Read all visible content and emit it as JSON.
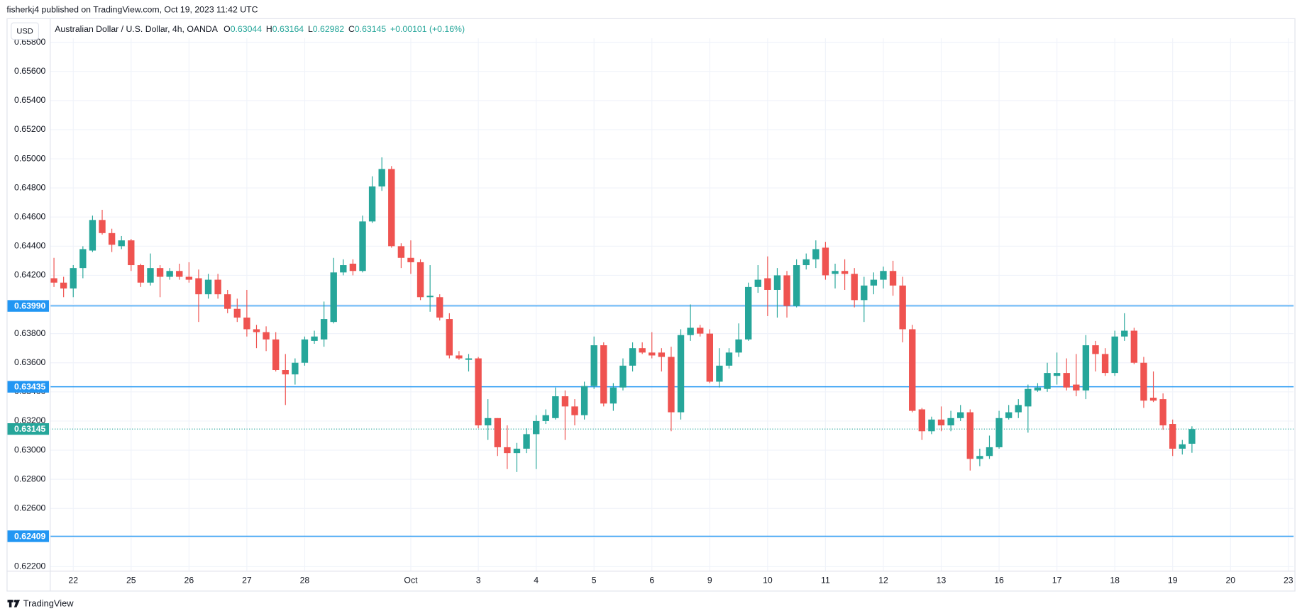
{
  "header": {
    "publisher": "fisherkj4 published on TradingView.com, Oct 19, 2023 11:42 UTC",
    "footer": "TradingView"
  },
  "chart_data": {
    "type": "candlestick",
    "currency": "USD",
    "title": "Australian Dollar / U.S. Dollar, 4h, OANDA",
    "ohlc_legend": [
      {
        "label": "O",
        "value": 0.63044
      },
      {
        "label": "H",
        "value": 0.63164
      },
      {
        "label": "L",
        "value": 0.62982
      },
      {
        "label": "C",
        "value": 0.63145
      }
    ],
    "change": "+0.00101 (+0.16%)",
    "up_color": "#26a69a",
    "down_color": "#ef5350",
    "x": [
      0,
      1,
      2,
      3,
      4,
      5,
      6,
      7,
      8,
      9,
      10,
      11,
      12,
      13,
      14,
      15,
      16,
      17,
      18,
      19,
      20,
      21,
      22,
      23,
      24,
      25,
      26,
      27,
      28,
      29,
      30,
      31,
      32,
      33,
      34,
      35,
      36,
      37,
      38,
      39,
      40,
      41,
      42,
      43,
      44,
      45,
      46,
      47,
      48,
      49,
      50,
      51,
      52,
      53,
      54,
      55,
      56,
      57,
      58,
      59,
      60,
      61,
      62,
      63,
      64,
      65,
      66,
      67,
      68,
      69,
      70,
      71,
      72,
      73,
      74,
      75,
      76,
      77,
      78,
      79,
      80,
      81,
      82,
      83,
      84,
      85,
      86,
      87,
      88,
      89,
      90,
      91,
      92,
      93,
      94,
      95,
      96,
      97,
      98,
      99,
      100,
      101,
      102,
      103,
      104,
      105,
      106,
      107,
      108,
      109,
      110,
      111,
      112,
      113,
      114,
      115,
      116,
      117,
      118
    ],
    "open": [
      0.6418,
      0.6415,
      0.6411,
      0.6425,
      0.6437,
      0.6458,
      0.6449,
      0.644,
      0.6444,
      0.6427,
      0.6415,
      0.6425,
      0.6419,
      0.6423,
      0.6419,
      0.6418,
      0.6407,
      0.6417,
      0.6407,
      0.6397,
      0.6391,
      0.6383,
      0.6381,
      0.6376,
      0.6355,
      0.6352,
      0.636,
      0.6375,
      0.6376,
      0.6388,
      0.6422,
      0.6428,
      0.6423,
      0.6457,
      0.6481,
      0.6493,
      0.644,
      0.6432,
      0.6429,
      0.6405,
      0.6405,
      0.639,
      0.6365,
      0.6362,
      0.6363,
      0.6317,
      0.6322,
      0.6302,
      0.6298,
      0.6301,
      0.6311,
      0.632,
      0.6322,
      0.6337,
      0.633,
      0.6324,
      0.6344,
      0.6372,
      0.6332,
      0.6343,
      0.6358,
      0.637,
      0.6367,
      0.6367,
      0.6364,
      0.6326,
      0.6379,
      0.6384,
      0.638,
      0.6347,
      0.6358,
      0.6367,
      0.6376,
      0.6412,
      0.6418,
      0.641,
      0.642,
      0.6399,
      0.6427,
      0.6431,
      0.6439,
      0.6421,
      0.6423,
      0.6421,
      0.6403,
      0.6413,
      0.6417,
      0.6423,
      0.6413,
      0.6383,
      0.6328,
      0.6313,
      0.6321,
      0.6317,
      0.6322,
      0.6326,
      0.6294,
      0.6296,
      0.6302,
      0.6322,
      0.6326,
      0.633,
      0.6341,
      0.6342,
      0.6351,
      0.6353,
      0.6345,
      0.6341,
      0.6372,
      0.6366,
      0.6353,
      0.6378,
      0.6382,
      0.636,
      0.6336,
      0.6335,
      0.6318,
      0.6301,
      0.63044
    ],
    "high": [
      0.6432,
      0.6419,
      0.6427,
      0.644,
      0.6461,
      0.6465,
      0.6452,
      0.6447,
      0.6445,
      0.6428,
      0.6435,
      0.6427,
      0.6425,
      0.6428,
      0.6429,
      0.6424,
      0.6421,
      0.6421,
      0.641,
      0.6404,
      0.641,
      0.6386,
      0.6385,
      0.6381,
      0.6366,
      0.6363,
      0.6378,
      0.6382,
      0.6402,
      0.6432,
      0.6431,
      0.6431,
      0.6461,
      0.6488,
      0.6501,
      0.6495,
      0.6442,
      0.6444,
      0.6431,
      0.6427,
      0.6407,
      0.6394,
      0.6368,
      0.6366,
      0.6364,
      0.6335,
      0.6322,
      0.6317,
      0.6305,
      0.6315,
      0.6324,
      0.6328,
      0.6343,
      0.6341,
      0.6335,
      0.6347,
      0.6378,
      0.6374,
      0.6346,
      0.6363,
      0.6374,
      0.6374,
      0.6381,
      0.637,
      0.6371,
      0.6383,
      0.64,
      0.6386,
      0.6383,
      0.637,
      0.637,
      0.6387,
      0.6415,
      0.6427,
      0.6433,
      0.6425,
      0.6423,
      0.6431,
      0.6435,
      0.6444,
      0.6443,
      0.6428,
      0.6431,
      0.6425,
      0.6419,
      0.6422,
      0.6426,
      0.643,
      0.6419,
      0.6386,
      0.6329,
      0.6323,
      0.633,
      0.6327,
      0.6331,
      0.6328,
      0.6301,
      0.631,
      0.6327,
      0.6331,
      0.6335,
      0.6345,
      0.6346,
      0.636,
      0.6367,
      0.6363,
      0.6366,
      0.6379,
      0.6375,
      0.637,
      0.6382,
      0.6394,
      0.6384,
      0.6364,
      0.6354,
      0.6339,
      0.6321,
      0.6307,
      0.63164
    ],
    "low": [
      0.6412,
      0.6405,
      0.6405,
      0.6418,
      0.6436,
      0.6448,
      0.6436,
      0.6438,
      0.6423,
      0.6412,
      0.6413,
      0.6405,
      0.6417,
      0.6417,
      0.6415,
      0.6388,
      0.6404,
      0.6404,
      0.6394,
      0.6388,
      0.6378,
      0.637,
      0.6368,
      0.6354,
      0.6331,
      0.6345,
      0.6358,
      0.6373,
      0.6371,
      0.6387,
      0.642,
      0.642,
      0.6422,
      0.6456,
      0.6478,
      0.6439,
      0.6425,
      0.6421,
      0.6403,
      0.6395,
      0.6389,
      0.6363,
      0.6362,
      0.6354,
      0.6315,
      0.6307,
      0.6296,
      0.6287,
      0.6285,
      0.6298,
      0.6287,
      0.6318,
      0.6321,
      0.6307,
      0.6317,
      0.6321,
      0.6342,
      0.633,
      0.6327,
      0.6341,
      0.6354,
      0.6366,
      0.6363,
      0.6354,
      0.6313,
      0.6321,
      0.6375,
      0.6378,
      0.6346,
      0.6343,
      0.6356,
      0.6364,
      0.6375,
      0.6408,
      0.6392,
      0.6391,
      0.6391,
      0.6398,
      0.6424,
      0.6425,
      0.6417,
      0.6411,
      0.641,
      0.6398,
      0.6388,
      0.6407,
      0.6411,
      0.6406,
      0.6374,
      0.6326,
      0.6307,
      0.6311,
      0.6313,
      0.6313,
      0.632,
      0.6286,
      0.6289,
      0.6294,
      0.6301,
      0.6321,
      0.6322,
      0.6312,
      0.634,
      0.634,
      0.6345,
      0.6341,
      0.6337,
      0.6335,
      0.6354,
      0.6351,
      0.6351,
      0.6375,
      0.6359,
      0.6329,
      0.6333,
      0.6314,
      0.6296,
      0.6297,
      0.62982
    ],
    "close": [
      0.6415,
      0.6411,
      0.6425,
      0.6438,
      0.6458,
      0.6449,
      0.6441,
      0.6444,
      0.6427,
      0.6415,
      0.6425,
      0.6419,
      0.6423,
      0.6419,
      0.6417,
      0.6407,
      0.6417,
      0.6407,
      0.6397,
      0.6391,
      0.6383,
      0.6381,
      0.6376,
      0.6355,
      0.6352,
      0.636,
      0.6376,
      0.6378,
      0.639,
      0.6422,
      0.6427,
      0.6423,
      0.6457,
      0.6481,
      0.6493,
      0.644,
      0.6432,
      0.6429,
      0.6405,
      0.6406,
      0.6391,
      0.6365,
      0.6363,
      0.6363,
      0.6317,
      0.6322,
      0.6302,
      0.6298,
      0.6301,
      0.6311,
      0.632,
      0.6324,
      0.6337,
      0.633,
      0.6324,
      0.6344,
      0.6372,
      0.6332,
      0.6343,
      0.6358,
      0.637,
      0.6367,
      0.6365,
      0.6364,
      0.6326,
      0.6379,
      0.6384,
      0.638,
      0.6347,
      0.6358,
      0.6367,
      0.6376,
      0.6412,
      0.6417,
      0.641,
      0.642,
      0.6399,
      0.6427,
      0.6431,
      0.6438,
      0.642,
      0.6423,
      0.6421,
      0.6403,
      0.6413,
      0.6417,
      0.6423,
      0.6413,
      0.6383,
      0.6327,
      0.6313,
      0.6321,
      0.6317,
      0.6322,
      0.6326,
      0.6294,
      0.6296,
      0.6302,
      0.6322,
      0.6326,
      0.6331,
      0.6342,
      0.6343,
      0.6353,
      0.6353,
      0.6343,
      0.6341,
      0.6372,
      0.6366,
      0.6353,
      0.6378,
      0.6382,
      0.636,
      0.6334,
      0.6334,
      0.6317,
      0.6301,
      0.6304,
      0.63145
    ],
    "xlim": [
      -0.43,
      128.55
    ],
    "xticks": [
      {
        "value": 2,
        "label": "22"
      },
      {
        "value": 8,
        "label": "25"
      },
      {
        "value": 14,
        "label": "26"
      },
      {
        "value": 20,
        "label": "27"
      },
      {
        "value": 26,
        "label": "28"
      },
      {
        "value": 37,
        "label": "Oct"
      },
      {
        "value": 44,
        "label": "3"
      },
      {
        "value": 50,
        "label": "4"
      },
      {
        "value": 56,
        "label": "5"
      },
      {
        "value": 62,
        "label": "6"
      },
      {
        "value": 68,
        "label": "9"
      },
      {
        "value": 74,
        "label": "10"
      },
      {
        "value": 80,
        "label": "11"
      },
      {
        "value": 86,
        "label": "12"
      },
      {
        "value": 92,
        "label": "13"
      },
      {
        "value": 98,
        "label": "16"
      },
      {
        "value": 104,
        "label": "17"
      },
      {
        "value": 110,
        "label": "18"
      },
      {
        "value": 116,
        "label": "19"
      },
      {
        "value": 122,
        "label": "20"
      },
      {
        "value": 128,
        "label": "23"
      }
    ],
    "ylim": [
      0.62172,
      0.65828
    ],
    "yticks": [
      {
        "value": 0.622,
        "label": "0.62200"
      },
      {
        "value": 0.624,
        "label": "0.62400"
      },
      {
        "value": 0.626,
        "label": "0.62600"
      },
      {
        "value": 0.628,
        "label": "0.62800"
      },
      {
        "value": 0.63,
        "label": "0.63000"
      },
      {
        "value": 0.632,
        "label": "0.63200"
      },
      {
        "value": 0.634,
        "label": "0.63400"
      },
      {
        "value": 0.636,
        "label": "0.63600"
      },
      {
        "value": 0.638,
        "label": "0.63800"
      },
      {
        "value": 0.64,
        "label": "0.64000"
      },
      {
        "value": 0.642,
        "label": "0.64200"
      },
      {
        "value": 0.644,
        "label": "0.64400"
      },
      {
        "value": 0.646,
        "label": "0.64600"
      },
      {
        "value": 0.648,
        "label": "0.64800"
      },
      {
        "value": 0.65,
        "label": "0.65000"
      },
      {
        "value": 0.652,
        "label": "0.65200"
      },
      {
        "value": 0.654,
        "label": "0.65400"
      },
      {
        "value": 0.656,
        "label": "0.65600"
      },
      {
        "value": 0.658,
        "label": "0.65800"
      }
    ],
    "grid": true,
    "level_color": "#2196f3",
    "levels": [
      {
        "value": 0.6399,
        "label": "0.63990"
      },
      0.63435,
      0.62409
    ],
    "last_price": 0.63145
  }
}
